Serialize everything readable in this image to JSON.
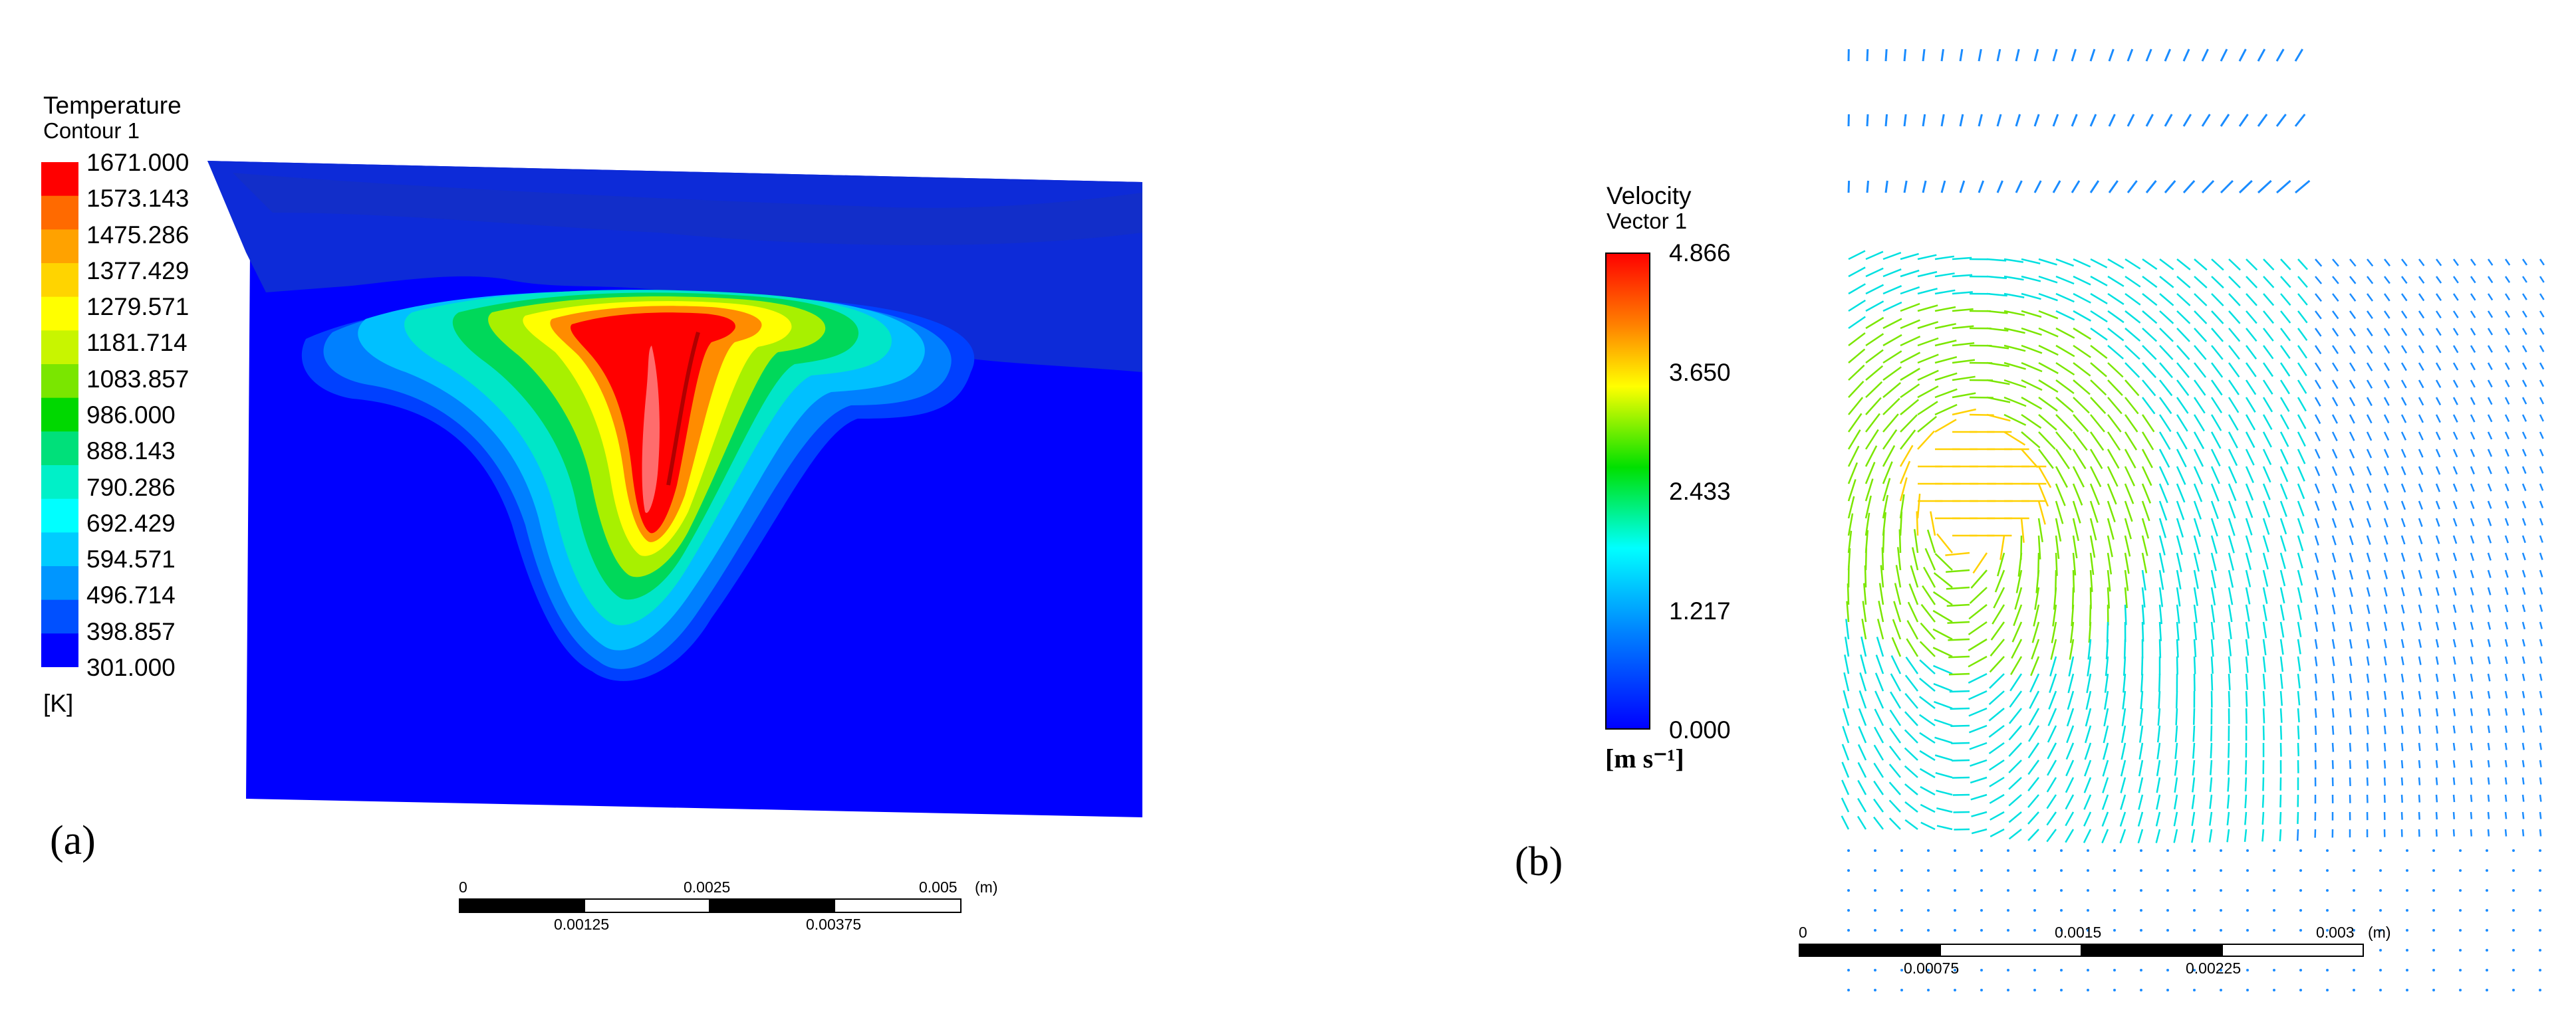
{
  "panel_a": {
    "label": "(a)",
    "legend": {
      "title": "Temperature",
      "subtitle": "Contour 1",
      "unit": "[K]",
      "ticks": [
        "1671.000",
        "1573.143",
        "1475.286",
        "1377.429",
        "1279.571",
        "1181.714",
        "1083.857",
        "986.000",
        "888.143",
        "790.286",
        "692.429",
        "594.571",
        "496.714",
        "398.857",
        "301.000"
      ],
      "colors": [
        "#ff0000",
        "#ff6a00",
        "#ffa200",
        "#ffd400",
        "#ffff00",
        "#c8f500",
        "#7ae600",
        "#00d800",
        "#00e07a",
        "#00f0c8",
        "#00ffff",
        "#00ccff",
        "#0096ff",
        "#0050ff",
        "#0000ff"
      ]
    },
    "scalebar": {
      "top_labels": [
        "0",
        "0.0025",
        "0.005"
      ],
      "bottom_labels": [
        "0.00125",
        "0.00375"
      ],
      "unit": "(m)"
    }
  },
  "panel_b": {
    "label": "(b)",
    "legend": {
      "title": "Velocity",
      "subtitle": "Vector 1",
      "unit": "[m s⁻¹]",
      "ticks": [
        "4.866",
        "3.650",
        "2.433",
        "1.217",
        "0.000"
      ]
    },
    "scalebar": {
      "top_labels": [
        "0",
        "0.0015",
        "0.003"
      ],
      "bottom_labels": [
        "0.00075",
        "0.00225"
      ],
      "unit": "(m)"
    }
  }
}
